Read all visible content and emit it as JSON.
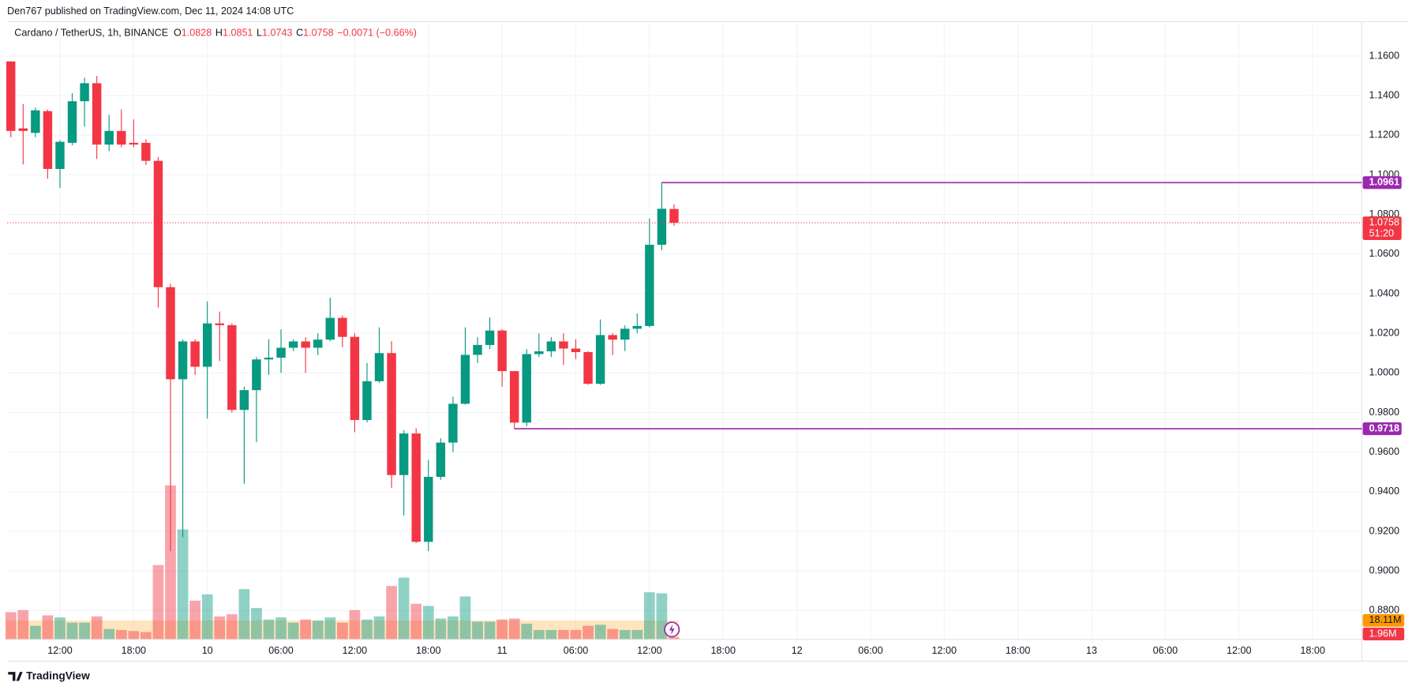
{
  "header": "Den767 published on TradingView.com, Dec 11, 2024 14:08 UTC",
  "footer": "TradingView",
  "chart_data": {
    "type": "candlestick",
    "symbol": "Cardano / TetherUS, 1h, BINANCE",
    "ohlc_legend": [
      {
        "key": "O",
        "value": 1.0828
      },
      {
        "key": "H",
        "value": 1.0851
      },
      {
        "key": "L",
        "value": 1.0743
      },
      {
        "key": "C",
        "value": 1.0758
      }
    ],
    "change": "−0.0071 (−0.66%)",
    "up_color": "#089981",
    "down_color": "#f23645",
    "level_color": "#9c27b0",
    "open": [
      1.1573,
      1.1235,
      1.1212,
      1.1322,
      1.103,
      1.1162,
      1.1372,
      1.1463,
      1.1153,
      1.1222,
      1.1162,
      1.1162,
      1.1071,
      1.0433,
      0.9968,
      1.0159,
      1.0031,
      1.025,
      1.0241,
      0.9813,
      0.9913,
      1.0068,
      1.0077,
      1.0127,
      1.0159,
      1.0127,
      1.0168,
      1.0278,
      1.0182,
      0.9762,
      0.9958,
      1.01,
      0.9484,
      0.9694,
      0.9147,
      0.9475,
      0.9648,
      0.9844,
      1.0091,
      1.0141,
      1.0214,
      1.0009,
      0.9749,
      1.0095,
      1.0109,
      1.0159,
      1.0123,
      1.0105,
      0.9945,
      1.0191,
      1.0168,
      1.0223,
      1.0237,
      1.0647,
      1.0828
    ],
    "high": [
      1.1573,
      1.1358,
      1.134,
      1.133,
      1.1175,
      1.1413,
      1.1491,
      1.15,
      1.1303,
      1.133,
      1.128,
      1.118,
      1.109,
      1.045,
      1.017,
      1.017,
      1.036,
      1.031,
      1.025,
      0.993,
      1.008,
      1.017,
      1.022,
      1.017,
      1.018,
      1.02,
      1.038,
      1.029,
      1.02,
      1.005,
      1.023,
      1.016,
      0.971,
      0.972,
      0.956,
      0.967,
      0.988,
      1.023,
      1.018,
      1.028,
      1.022,
      1.001,
      1.012,
      1.02,
      1.018,
      1.02,
      1.017,
      1.011,
      1.027,
      1.02,
      1.024,
      1.03,
      1.078,
      1.0961,
      1.0851
    ],
    "low": [
      1.119,
      1.1053,
      1.119,
      1.098,
      1.0934,
      1.115,
      1.1244,
      1.108,
      1.112,
      1.114,
      1.114,
      1.105,
      1.033,
      0.91,
      0.917,
      0.999,
      0.977,
      1.006,
      0.98,
      0.944,
      0.965,
      0.999,
      1.0,
      1.011,
      1.0,
      1.009,
      1.016,
      1.013,
      0.97,
      0.975,
      0.995,
      0.942,
      0.928,
      0.914,
      0.91,
      0.946,
      0.96,
      0.984,
      1.005,
      1.012,
      0.993,
      0.9718,
      0.973,
      1.008,
      1.008,
      1.004,
      1.007,
      0.994,
      0.994,
      1.009,
      1.011,
      1.02,
      1.023,
      1.062,
      1.0743
    ],
    "close": [
      1.1222,
      1.1222,
      1.1326,
      1.103,
      1.1167,
      1.1372,
      1.1463,
      1.1153,
      1.1222,
      1.1153,
      1.1153,
      1.1071,
      1.0433,
      0.9968,
      1.0159,
      1.0031,
      1.025,
      1.0241,
      0.9813,
      0.9913,
      1.0068,
      1.0077,
      1.0127,
      1.0159,
      1.0127,
      1.0168,
      1.0278,
      1.0182,
      0.9762,
      0.9958,
      1.01,
      0.9484,
      0.9694,
      0.9147,
      0.9475,
      0.9648,
      0.9844,
      1.0091,
      1.0141,
      1.0214,
      1.0009,
      0.9749,
      1.0095,
      1.0109,
      1.0159,
      1.0123,
      1.0105,
      0.9945,
      1.0191,
      1.0168,
      1.0223,
      1.0237,
      1.0647,
      1.0829,
      1.0758
    ],
    "volume": [
      26,
      28,
      13,
      23,
      21,
      16,
      16,
      22,
      10,
      9,
      8,
      7,
      71,
      147,
      105,
      37,
      43,
      22,
      24,
      48,
      30,
      19,
      21,
      16,
      19,
      18,
      21,
      16,
      28,
      19,
      22,
      51,
      59,
      34,
      32,
      20,
      22,
      41,
      17,
      17,
      19,
      20,
      15,
      9,
      9,
      9,
      9,
      13,
      14,
      10,
      9,
      9,
      45,
      44,
      1.96
    ],
    "volume_last_label": "1.96M",
    "volume_ma": {
      "value": 18.11,
      "label": "18.11M"
    },
    "vlim": [
      0,
      593
    ],
    "levels": [
      1.0961,
      0.9718
    ],
    "countdown": "51:20",
    "ylim": [
      0.8654,
      1.1792
    ],
    "yticks": [
      {
        "value": 1.16,
        "label": "1.1600"
      },
      {
        "value": 1.14,
        "label": "1.1400"
      },
      {
        "value": 1.12,
        "label": "1.1200"
      },
      {
        "value": 1.1,
        "label": "1.1000"
      },
      {
        "value": 1.08,
        "label": "1.0800"
      },
      {
        "value": 1.06,
        "label": "1.0600"
      },
      {
        "value": 1.04,
        "label": "1.0400"
      },
      {
        "value": 1.02,
        "label": "1.0200"
      },
      {
        "value": 1.0,
        "label": "1.0000"
      },
      {
        "value": 0.98,
        "label": "0.9800"
      },
      {
        "value": 0.96,
        "label": "0.9600"
      },
      {
        "value": 0.94,
        "label": "0.9400"
      },
      {
        "value": 0.92,
        "label": "0.9200"
      },
      {
        "value": 0.9,
        "label": "0.9000"
      },
      {
        "value": 0.88,
        "label": "0.8800"
      }
    ],
    "x_labels": [
      "12:00",
      "18:00",
      "10",
      "06:00",
      "12:00",
      "18:00",
      "11",
      "06:00",
      "12:00",
      "18:00",
      "12",
      "06:00",
      "12:00",
      "18:00",
      "13",
      "06:00",
      "12:00",
      "18:00"
    ],
    "grid": true
  }
}
